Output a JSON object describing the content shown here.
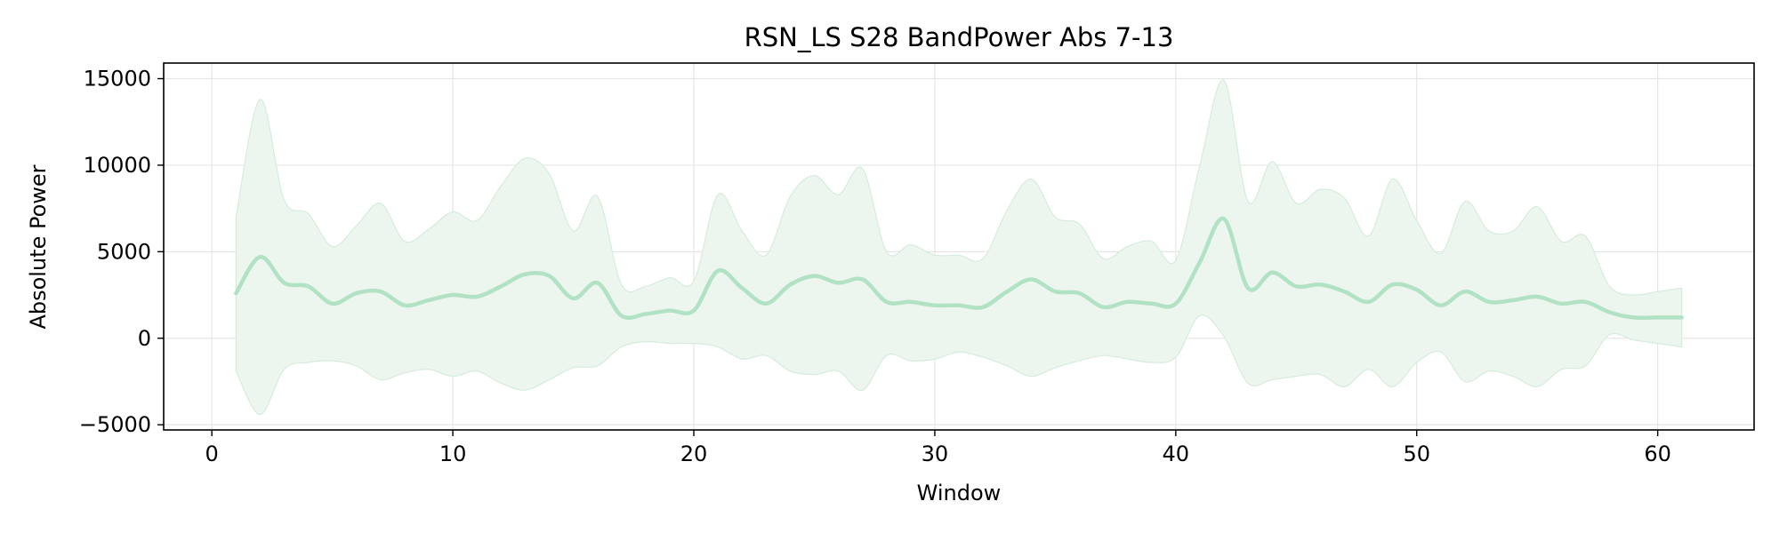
{
  "chart_data": {
    "type": "line",
    "title": "RSN_LS S28 BandPower Abs 7-13",
    "xlabel": "Window",
    "ylabel": "Absolute Power",
    "xlim": [
      -2,
      64
    ],
    "ylim": [
      -5300,
      15900
    ],
    "xticks": [
      0,
      10,
      20,
      30,
      40,
      50,
      60
    ],
    "yticks": [
      -5000,
      0,
      5000,
      10000,
      15000
    ],
    "ytick_labels": [
      "−5000",
      "0",
      "5000",
      "10000",
      "15000"
    ],
    "grid": true,
    "line_color": "#b2e2c4",
    "band_color": "#ecf6ee",
    "band_edge_color": "#d6ecdd",
    "x": [
      1,
      2,
      3,
      4,
      5,
      6,
      7,
      8,
      9,
      10,
      11,
      12,
      13,
      14,
      15,
      16,
      17,
      18,
      19,
      20,
      21,
      22,
      23,
      24,
      25,
      26,
      27,
      28,
      29,
      30,
      31,
      32,
      33,
      34,
      35,
      36,
      37,
      38,
      39,
      40,
      41,
      42,
      43,
      44,
      45,
      46,
      47,
      48,
      49,
      50,
      51,
      52,
      53,
      54,
      55,
      56,
      57,
      58,
      59,
      60,
      61
    ],
    "mean": [
      2600,
      4700,
      3200,
      3000,
      2000,
      2600,
      2700,
      1900,
      2200,
      2500,
      2400,
      3000,
      3700,
      3600,
      2300,
      3200,
      1300,
      1400,
      1600,
      1600,
      3900,
      2900,
      2000,
      3100,
      3600,
      3200,
      3400,
      2100,
      2100,
      1900,
      1900,
      1800,
      2700,
      3400,
      2700,
      2600,
      1800,
      2100,
      2000,
      2000,
      4400,
      6900,
      2900,
      3800,
      3000,
      3100,
      2700,
      2100,
      3100,
      2800,
      1900,
      2700,
      2100,
      2200,
      2400,
      2000,
      2100,
      1500,
      1200,
      1200,
      1200
    ],
    "upper": [
      7000,
      13800,
      8000,
      7200,
      5300,
      6500,
      7800,
      5600,
      6300,
      7300,
      6800,
      8800,
      10400,
      9500,
      6200,
      8200,
      3100,
      3000,
      3500,
      3300,
      8300,
      6200,
      4800,
      8200,
      9400,
      8300,
      9800,
      5000,
      5400,
      4800,
      4800,
      4600,
      7400,
      9200,
      7000,
      6600,
      4600,
      5300,
      5600,
      4500,
      10000,
      14900,
      7900,
      10200,
      7800,
      8600,
      8100,
      5900,
      9200,
      6800,
      4900,
      7900,
      6200,
      6200,
      7600,
      5600,
      5900,
      3000,
      2500,
      2700,
      2900
    ],
    "lower": [
      -1900,
      -4400,
      -1800,
      -1400,
      -1300,
      -1600,
      -2400,
      -2000,
      -1800,
      -2200,
      -1900,
      -2600,
      -3000,
      -2400,
      -1700,
      -1600,
      -500,
      -200,
      -300,
      -300,
      -500,
      -1200,
      -1000,
      -1900,
      -2100,
      -1900,
      -3000,
      -1000,
      -1300,
      -1200,
      -800,
      -1100,
      -1600,
      -2200,
      -1700,
      -1300,
      -1000,
      -1200,
      -1400,
      -1100,
      1300,
      100,
      -2600,
      -2400,
      -2200,
      -2100,
      -2800,
      -1800,
      -2800,
      -1400,
      -800,
      -2500,
      -1900,
      -2200,
      -2800,
      -1800,
      -1600,
      200,
      -100,
      -300,
      -500
    ]
  }
}
